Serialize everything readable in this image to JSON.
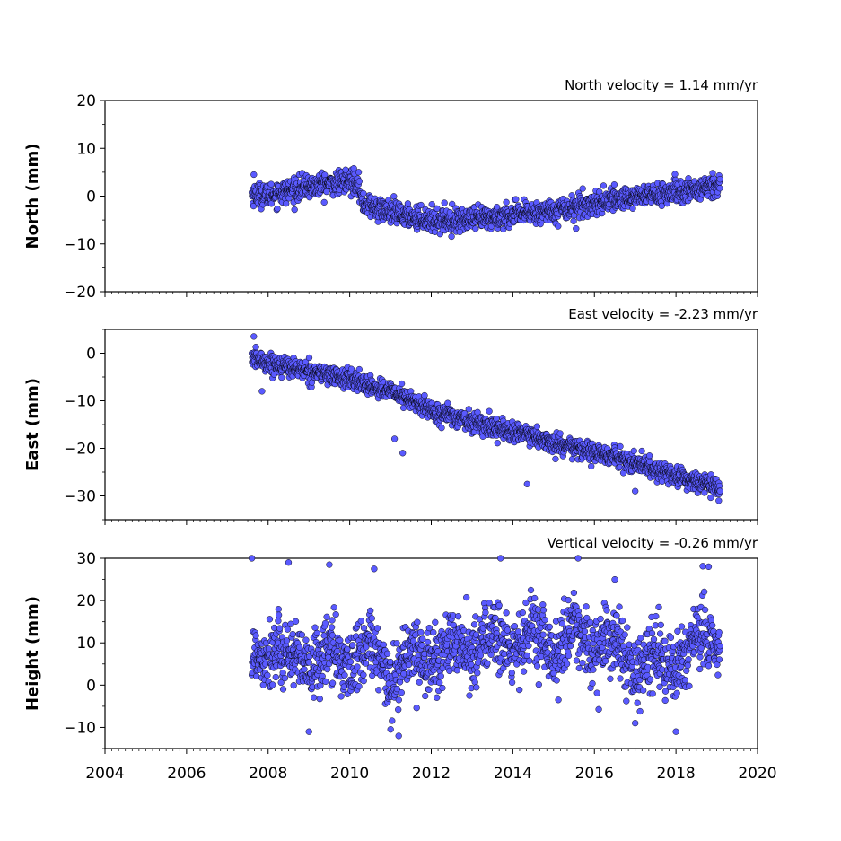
{
  "chart_data": [
    {
      "type": "scatter",
      "title": "North velocity = 1.14 mm/yr",
      "ylabel": "North (mm)",
      "xlabel": "",
      "xlim": [
        2004,
        2020
      ],
      "ylim": [
        -20,
        20
      ],
      "yticks": [
        -20,
        -10,
        0,
        10,
        20
      ],
      "grid": false,
      "trend_knots": [
        [
          2007.6,
          0.5
        ],
        [
          2008.0,
          0.2
        ],
        [
          2009.0,
          2.0
        ],
        [
          2010.2,
          3.2
        ],
        [
          2010.3,
          -1.5
        ],
        [
          2011.0,
          -3.5
        ],
        [
          2012.0,
          -5.0
        ],
        [
          2013.0,
          -5.0
        ],
        [
          2014.0,
          -4.0
        ],
        [
          2015.0,
          -3.0
        ],
        [
          2016.0,
          -1.5
        ],
        [
          2017.0,
          0.0
        ],
        [
          2018.0,
          0.8
        ],
        [
          2019.0,
          1.8
        ],
        [
          2019.1,
          2.2
        ]
      ],
      "scatter_sd": 1.2,
      "outliers": [
        [
          2007.65,
          4.5
        ],
        [
          2009.9,
          5.5
        ],
        [
          2010.1,
          5.8
        ],
        [
          2012.7,
          -7.5
        ],
        [
          2015.55,
          -6.8
        ],
        [
          2018.9,
          4.8
        ]
      ]
    },
    {
      "type": "scatter",
      "title": "East velocity = -2.23 mm/yr",
      "ylabel": "East (mm)",
      "xlabel": "",
      "xlim": [
        2004,
        2020
      ],
      "ylim": [
        -35,
        5
      ],
      "yticks": [
        -30,
        -20,
        -10,
        0
      ],
      "grid": false,
      "trend_knots": [
        [
          2007.6,
          -1.0
        ],
        [
          2008.0,
          -2.0
        ],
        [
          2010.0,
          -5.5
        ],
        [
          2011.0,
          -8.0
        ],
        [
          2012.0,
          -12.0
        ],
        [
          2013.0,
          -14.5
        ],
        [
          2014.0,
          -16.5
        ],
        [
          2015.0,
          -19.0
        ],
        [
          2016.0,
          -21.0
        ],
        [
          2017.0,
          -23.0
        ],
        [
          2018.0,
          -26.0
        ],
        [
          2019.0,
          -28.0
        ],
        [
          2019.1,
          -28.5
        ]
      ],
      "scatter_sd": 1.0,
      "outliers": [
        [
          2007.65,
          3.5
        ],
        [
          2007.85,
          -8.0
        ],
        [
          2011.1,
          -18.0
        ],
        [
          2011.3,
          -21.0
        ],
        [
          2014.35,
          -27.5
        ],
        [
          2017.0,
          -29.0
        ],
        [
          2019.05,
          -31.0
        ]
      ]
    },
    {
      "type": "scatter",
      "title": "Vertical velocity = -0.26 mm/yr",
      "ylabel": "Height (mm)",
      "xlabel": "",
      "xlim": [
        2004,
        2020
      ],
      "ylim": [
        -15,
        30
      ],
      "yticks": [
        -10,
        0,
        10,
        20,
        30
      ],
      "xticks": [
        2004,
        2006,
        2008,
        2010,
        2012,
        2014,
        2016,
        2018,
        2020
      ],
      "grid": false,
      "trend_knots": [
        [
          2007.6,
          7.0
        ],
        [
          2008.5,
          8.0
        ],
        [
          2009.0,
          3.0
        ],
        [
          2009.5,
          9.0
        ],
        [
          2010.0,
          4.0
        ],
        [
          2010.5,
          10.0
        ],
        [
          2011.0,
          0.0
        ],
        [
          2011.5,
          9.0
        ],
        [
          2012.0,
          5.0
        ],
        [
          2012.5,
          10.0
        ],
        [
          2013.0,
          7.0
        ],
        [
          2013.5,
          13.0
        ],
        [
          2014.0,
          7.0
        ],
        [
          2014.5,
          14.0
        ],
        [
          2015.0,
          5.0
        ],
        [
          2015.5,
          15.0
        ],
        [
          2016.0,
          7.0
        ],
        [
          2016.5,
          12.0
        ],
        [
          2017.0,
          1.0
        ],
        [
          2017.5,
          8.0
        ],
        [
          2018.0,
          3.0
        ],
        [
          2018.5,
          13.0
        ],
        [
          2019.0,
          9.0
        ],
        [
          2019.1,
          8.0
        ]
      ],
      "scatter_sd": 4.0,
      "outliers": [
        [
          2007.6,
          30.0
        ],
        [
          2008.5,
          29.0
        ],
        [
          2009.0,
          -11.0
        ],
        [
          2009.5,
          28.5
        ],
        [
          2010.6,
          27.5
        ],
        [
          2011.2,
          -12.0
        ],
        [
          2013.7,
          30.0
        ],
        [
          2015.6,
          30.0
        ],
        [
          2016.5,
          25.0
        ],
        [
          2017.0,
          -9.0
        ],
        [
          2018.0,
          -11.0
        ],
        [
          2018.8,
          28.0
        ]
      ]
    }
  ],
  "colors": {
    "marker_fill": "#5a5aff",
    "marker_edge": "#000000",
    "axis": "#000000"
  }
}
